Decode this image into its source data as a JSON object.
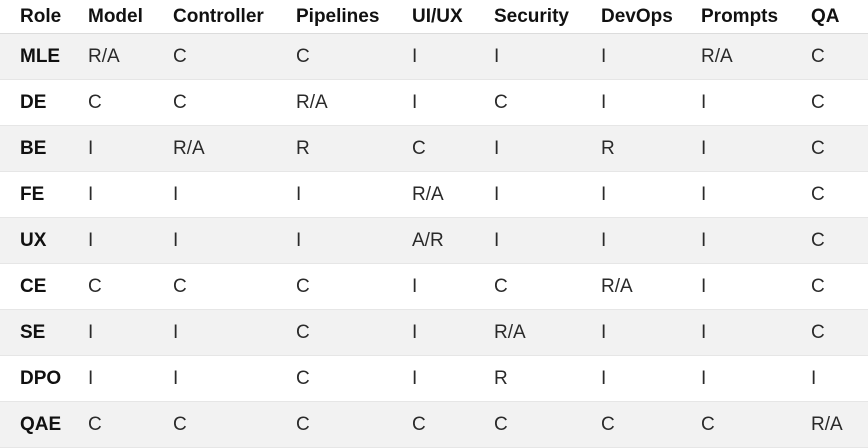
{
  "table": {
    "headers": [
      "Role",
      "Model",
      "Controller",
      "Pipelines",
      "UI/UX",
      "Security",
      "DevOps",
      "Prompts",
      "QA"
    ],
    "rows": [
      [
        "MLE",
        "R/A",
        "C",
        "C",
        "I",
        "I",
        "I",
        "R/A",
        "C"
      ],
      [
        "DE",
        "C",
        "C",
        "R/A",
        "I",
        "C",
        "I",
        "I",
        "C"
      ],
      [
        "BE",
        "I",
        "R/A",
        "R",
        "C",
        "I",
        "R",
        "I",
        "C"
      ],
      [
        "FE",
        "I",
        "I",
        "I",
        "R/A",
        "I",
        "I",
        "I",
        "C"
      ],
      [
        "UX",
        "I",
        "I",
        "I",
        "A/R",
        "I",
        "I",
        "I",
        "C"
      ],
      [
        "CE",
        "C",
        "C",
        "C",
        "I",
        "C",
        "R/A",
        "I",
        "C"
      ],
      [
        "SE",
        "I",
        "I",
        "C",
        "I",
        "R/A",
        "I",
        "I",
        "C"
      ],
      [
        "DPO",
        "I",
        "I",
        "C",
        "I",
        "R",
        "I",
        "I",
        "I"
      ],
      [
        "QAE",
        "C",
        "C",
        "C",
        "C",
        "C",
        "C",
        "C",
        "R/A"
      ]
    ]
  }
}
